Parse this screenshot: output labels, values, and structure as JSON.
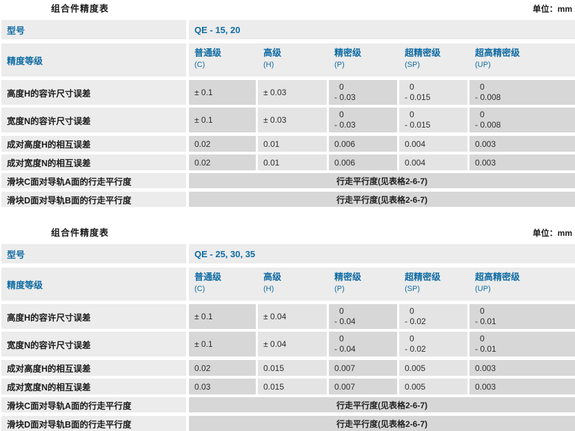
{
  "unit_label": "单位：mm",
  "columns": [
    {
      "name": "普通级",
      "code": "(C)"
    },
    {
      "name": "高级",
      "code": "(H)"
    },
    {
      "name": "精密级",
      "code": "(P)"
    },
    {
      "name": "超精密级",
      "code": "(SP)"
    },
    {
      "name": "超高精密级",
      "code": "(UP)"
    }
  ],
  "colors": {
    "accent_blue": "#0f6ba3",
    "cell_dark": "#d7d7d7",
    "cell_light": "#e4e4e4",
    "header_bg": "#ececec"
  },
  "tables": [
    {
      "title": "组合件精度表",
      "model_label": "型号",
      "model_value": "QE - 15, 20",
      "grade_label": "精度等级",
      "rows": [
        {
          "label": "高度H的容许尺寸误差",
          "values": [
            [
              "± 0.1"
            ],
            [
              "± 0.03"
            ],
            [
              "0",
              "- 0.03"
            ],
            [
              "0",
              "- 0.015"
            ],
            [
              "0",
              "- 0.008"
            ]
          ]
        },
        {
          "label": "宽度N的容许尺寸误差",
          "values": [
            [
              "± 0.1"
            ],
            [
              "± 0.03"
            ],
            [
              "0",
              "- 0.03"
            ],
            [
              "0",
              "- 0.015"
            ],
            [
              "0",
              "- 0.008"
            ]
          ]
        },
        {
          "label": "成对高度H的相互误差",
          "values": [
            [
              "0.02"
            ],
            [
              "0.01"
            ],
            [
              "0.006"
            ],
            [
              "0.004"
            ],
            [
              "0.003"
            ]
          ]
        },
        {
          "label": "成对宽度N的相互误差",
          "values": [
            [
              "0.02"
            ],
            [
              "0.01"
            ],
            [
              "0.006"
            ],
            [
              "0.004"
            ],
            [
              "0.003"
            ]
          ]
        }
      ],
      "span_rows": [
        {
          "label": "滑块C面对导轨A面的行走平行度",
          "value": "行走平行度(见表格2-6-7)"
        },
        {
          "label": "滑块D面对导轨B面的行走平行度",
          "value": "行走平行度(见表格2-6-7)"
        }
      ]
    },
    {
      "title": "组合件精度表",
      "model_label": "型号",
      "model_value": "QE - 25, 30, 35",
      "grade_label": "精度等级",
      "rows": [
        {
          "label": "高度H的容许尺寸误差",
          "values": [
            [
              "± 0.1"
            ],
            [
              "± 0.04"
            ],
            [
              "0",
              "- 0.04"
            ],
            [
              "0",
              "- 0.02"
            ],
            [
              "0",
              "- 0.01"
            ]
          ]
        },
        {
          "label": "宽度N的容许尺寸误差",
          "values": [
            [
              "± 0.1"
            ],
            [
              "± 0.04"
            ],
            [
              "0",
              "- 0.04"
            ],
            [
              "0",
              "- 0.02"
            ],
            [
              "0",
              "- 0.01"
            ]
          ]
        },
        {
          "label": "成对高度H的相互误差",
          "values": [
            [
              "0.02"
            ],
            [
              "0.015"
            ],
            [
              "0.007"
            ],
            [
              "0.005"
            ],
            [
              "0.003"
            ]
          ]
        },
        {
          "label": "成对宽度N的相互误差",
          "values": [
            [
              "0.03"
            ],
            [
              "0.015"
            ],
            [
              "0.007"
            ],
            [
              "0.005"
            ],
            [
              "0.003"
            ]
          ]
        }
      ],
      "span_rows": [
        {
          "label": "滑块C面对导轨A面的行走平行度",
          "value": "行走平行度(见表格2-6-7)"
        },
        {
          "label": "滑块D面对导轨B面的行走平行度",
          "value": "行走平行度(见表格2-6-7)"
        }
      ]
    }
  ]
}
